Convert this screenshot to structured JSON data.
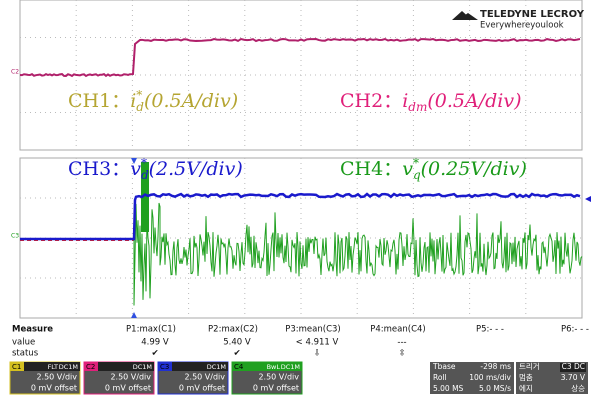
{
  "header": {
    "brand": "TELEDYNE LECROY",
    "tagline": "Everywhereyoulook"
  },
  "markers": {
    "c2": "C2",
    "c3": "C3"
  },
  "annotations": [
    {
      "channel": "CH1：",
      "symbol": "i",
      "sup": "*",
      "sub": "d",
      "scale": "(0.5A/div)"
    },
    {
      "channel": "CH2：",
      "symbol": "i",
      "sub": "dm",
      "scale": "(0.5A/div)"
    },
    {
      "channel": "CH3：",
      "symbol": "v",
      "sup": "*",
      "sub": "d",
      "scale": "(2.5V/div)"
    },
    {
      "channel": "CH4：",
      "symbol": "v",
      "sup": "*",
      "sub": "q",
      "scale": "(0.25V/div)"
    }
  ],
  "measure": {
    "title": "Measure",
    "params": [
      "P1:max(C1)",
      "P2:max(C2)",
      "P3:mean(C3)",
      "P4:mean(C4)",
      "P5:- - -",
      "P6:- - -"
    ],
    "row_labels": [
      "value",
      "status"
    ],
    "values": [
      "4.99 V",
      "5.40 V",
      "< 4.911 V",
      "---"
    ],
    "status": [
      "✔",
      "✔",
      "⇩",
      "⇳"
    ]
  },
  "channels": [
    {
      "id": "C1",
      "tags": [
        "FLT",
        "DC1M"
      ],
      "scale": "2.50 V/div",
      "offset": "0 mV offset"
    },
    {
      "id": "C2",
      "tags": [
        "DC1M"
      ],
      "scale": "2.50 V/div",
      "offset": "0 mV offset"
    },
    {
      "id": "C3",
      "tags": [
        "DC1M"
      ],
      "scale": "2.50 V/div",
      "offset": "0 mV offset"
    },
    {
      "id": "C4",
      "tags": [
        "BwL",
        "DC1M"
      ],
      "scale": "2.50 V/div",
      "offset": "0 mV offset"
    }
  ],
  "timebase": {
    "label": "Tbase",
    "delay": "-298 ms",
    "mode": "Roll",
    "scale": "100 ms/div",
    "samples": "5.00 MS",
    "rate": "5.0 MS/s"
  },
  "trigger": {
    "label": "트리거",
    "source": "C3 DC",
    "state": "멈춤",
    "level": "3.70 V",
    "type": "에지",
    "slope": "상승"
  }
}
